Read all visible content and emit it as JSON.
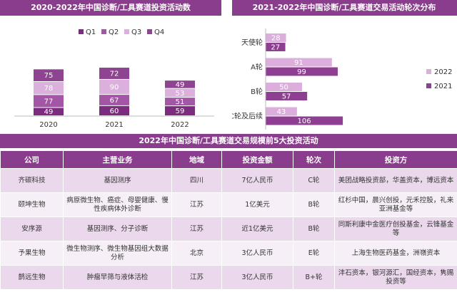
{
  "chart_data": [
    {
      "type": "stacked-bar",
      "title": "2020-2022年中国诊断/工具赛道投资活动数",
      "categories": [
        "2020",
        "2021",
        "2022"
      ],
      "series": [
        {
          "name": "Q1",
          "color": "#7b2c7e",
          "values": [
            49,
            60,
            59
          ]
        },
        {
          "name": "Q2",
          "color": "#a356a6",
          "values": [
            77,
            67,
            51
          ]
        },
        {
          "name": "Q3",
          "color": "#dcb0dc",
          "values": [
            78,
            90,
            53
          ]
        },
        {
          "name": "Q4",
          "color": "#8f4492",
          "values": [
            75,
            72,
            49
          ]
        }
      ]
    },
    {
      "type": "hbar",
      "title": "2021-2022年中国诊断/工具赛道交易活动轮次分布",
      "categories": [
        "天使轮",
        "A轮",
        "B轮",
        "C轮及后续"
      ],
      "series": [
        {
          "name": "2022",
          "color": "#dcaedc",
          "values": [
            28,
            91,
            50,
            43
          ]
        },
        {
          "name": "2021",
          "color": "#8f3f92",
          "values": [
            27,
            99,
            57,
            106
          ]
        }
      ]
    }
  ],
  "table": {
    "title": "2022年中国诊断/工具赛道交易规模前5大投资活动",
    "header": [
      "公司",
      "主营业务",
      "地域",
      "投资金额",
      "轮次",
      "投资方"
    ],
    "rows": [
      [
        "齐碳科技",
        "基因测序",
        "四川",
        "7亿人民币",
        "C轮",
        "美团战略投资部，华盖资本，博远资本"
      ],
      [
        "颐坤生物",
        "病原微生物、癌症、母婴健康、慢性疾病体外诊断",
        "江苏",
        "1亿美元",
        "B轮",
        "红杉中国，晨兴创投，元禾控股，礼来亚洲基金等"
      ],
      [
        "安序源",
        "基因测序、分子诊断",
        "江苏",
        "近1亿美元",
        "B轮",
        "同斯利康中金医疗创投基金，云锋基金等"
      ],
      [
        "予果生物",
        "微生物测序、微生物基因组大数据分析",
        "北京",
        "3亿人民币",
        "E轮",
        "上海生物医药基金，洲嶺资本"
      ],
      [
        "鹊远生物",
        "肿瘤早筛与液体活检",
        "江苏",
        "3亿人民币",
        "B+轮",
        "沣石资本，银河源汇，国经资本，隽赐投资等"
      ]
    ]
  }
}
